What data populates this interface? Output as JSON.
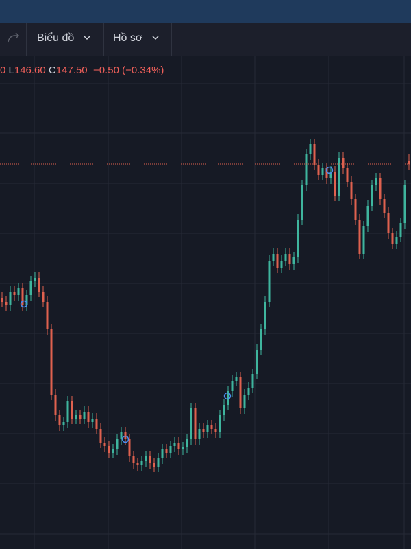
{
  "toolbar": {
    "chart_menu": "Biểu đồ",
    "profile_menu": "Hồ sơ"
  },
  "legend": {
    "fragment": "0",
    "low_label": "L",
    "low": "146.60",
    "close_label": "C",
    "close": "147.50",
    "change": "−0.50 (−0.34%)"
  },
  "chart_data": {
    "type": "candlestick",
    "up_color": "#3fb59e",
    "down_color": "#e0614f",
    "candles": [
      [
        128.0,
        128.8,
        126.6,
        127.4
      ],
      [
        127.4,
        128.2,
        126.1,
        126.9
      ],
      [
        126.9,
        129.7,
        126.1,
        128.9
      ],
      [
        128.9,
        129.7,
        127.6,
        128.4
      ],
      [
        128.4,
        130.2,
        127.6,
        129.4
      ],
      [
        129.4,
        130.2,
        126.1,
        126.9
      ],
      [
        126.9,
        129.2,
        126.1,
        128.4
      ],
      [
        128.4,
        131.2,
        127.6,
        130.4
      ],
      [
        130.4,
        131.7,
        129.6,
        130.9
      ],
      [
        130.9,
        131.7,
        128.1,
        128.9
      ],
      [
        128.9,
        129.7,
        126.6,
        127.4
      ],
      [
        127.4,
        128.2,
        122.6,
        123.4
      ],
      [
        123.4,
        124.2,
        113.1,
        113.9
      ],
      [
        113.9,
        114.7,
        110.1,
        110.9
      ],
      [
        110.9,
        111.7,
        108.6,
        109.4
      ],
      [
        109.4,
        110.7,
        108.6,
        109.9
      ],
      [
        109.9,
        113.7,
        109.1,
        112.9
      ],
      [
        112.9,
        113.7,
        109.6,
        110.4
      ],
      [
        110.4,
        111.7,
        109.6,
        110.9
      ],
      [
        110.9,
        111.7,
        109.6,
        110.4
      ],
      [
        110.4,
        112.2,
        109.6,
        111.4
      ],
      [
        111.4,
        112.2,
        109.1,
        109.9
      ],
      [
        109.9,
        111.2,
        109.1,
        110.4
      ],
      [
        110.4,
        111.2,
        108.1,
        108.9
      ],
      [
        108.9,
        109.7,
        106.1,
        106.9
      ],
      [
        106.9,
        107.7,
        105.6,
        106.4
      ],
      [
        106.4,
        107.2,
        104.6,
        105.4
      ],
      [
        105.4,
        106.7,
        104.6,
        105.9
      ],
      [
        105.9,
        108.2,
        105.1,
        107.4
      ],
      [
        107.4,
        109.2,
        106.6,
        108.4
      ],
      [
        108.4,
        109.2,
        106.6,
        107.4
      ],
      [
        107.4,
        108.2,
        104.1,
        104.9
      ],
      [
        104.9,
        105.7,
        103.1,
        103.9
      ],
      [
        103.9,
        104.7,
        102.8,
        103.6
      ],
      [
        103.6,
        105.0,
        102.8,
        104.2
      ],
      [
        104.2,
        105.7,
        103.4,
        104.9
      ],
      [
        104.9,
        105.7,
        103.1,
        103.9
      ],
      [
        103.9,
        104.7,
        102.6,
        103.4
      ],
      [
        103.4,
        105.4,
        102.6,
        104.6
      ],
      [
        104.6,
        106.7,
        103.8,
        105.9
      ],
      [
        105.9,
        106.7,
        104.6,
        105.4
      ],
      [
        105.4,
        107.2,
        104.6,
        106.4
      ],
      [
        106.4,
        107.7,
        105.6,
        106.9
      ],
      [
        106.9,
        107.7,
        105.1,
        105.9
      ],
      [
        105.9,
        107.0,
        105.1,
        106.2
      ],
      [
        106.2,
        108.2,
        105.4,
        107.4
      ],
      [
        107.4,
        112.7,
        106.6,
        111.9
      ],
      [
        111.9,
        112.7,
        106.6,
        107.4
      ],
      [
        107.4,
        109.7,
        106.6,
        108.9
      ],
      [
        108.9,
        109.7,
        107.6,
        108.4
      ],
      [
        108.4,
        110.2,
        107.6,
        109.4
      ],
      [
        109.4,
        110.2,
        108.1,
        108.9
      ],
      [
        108.9,
        109.7,
        107.6,
        108.4
      ],
      [
        108.4,
        111.7,
        107.6,
        110.9
      ],
      [
        110.9,
        113.2,
        110.1,
        112.4
      ],
      [
        112.4,
        115.2,
        111.6,
        114.4
      ],
      [
        114.4,
        116.7,
        113.6,
        115.9
      ],
      [
        115.9,
        117.2,
        115.1,
        116.4
      ],
      [
        116.4,
        117.2,
        111.1,
        111.9
      ],
      [
        111.9,
        114.7,
        111.1,
        113.9
      ],
      [
        113.9,
        115.7,
        113.1,
        114.9
      ],
      [
        114.9,
        117.7,
        114.1,
        116.9
      ],
      [
        116.9,
        121.2,
        116.1,
        120.4
      ],
      [
        120.4,
        124.2,
        119.6,
        123.4
      ],
      [
        123.4,
        128.2,
        122.6,
        127.4
      ],
      [
        127.4,
        134.2,
        126.6,
        133.4
      ],
      [
        133.4,
        135.2,
        132.6,
        134.4
      ],
      [
        134.4,
        135.2,
        131.6,
        132.4
      ],
      [
        132.4,
        134.2,
        131.6,
        133.4
      ],
      [
        133.4,
        135.2,
        132.6,
        134.4
      ],
      [
        134.4,
        135.2,
        132.1,
        132.9
      ],
      [
        132.9,
        134.7,
        132.1,
        133.9
      ],
      [
        133.9,
        140.2,
        133.1,
        139.4
      ],
      [
        139.4,
        145.2,
        138.6,
        144.4
      ],
      [
        144.4,
        149.7,
        143.6,
        148.9
      ],
      [
        148.9,
        151.2,
        148.1,
        150.4
      ],
      [
        150.4,
        151.2,
        146.6,
        147.4
      ],
      [
        147.4,
        148.2,
        145.1,
        145.9
      ],
      [
        145.9,
        147.7,
        145.1,
        146.9
      ],
      [
        146.9,
        147.7,
        144.6,
        145.4
      ],
      [
        145.4,
        147.2,
        144.6,
        146.4
      ],
      [
        146.4,
        147.2,
        142.1,
        142.9
      ],
      [
        142.9,
        149.2,
        142.1,
        148.4
      ],
      [
        148.4,
        149.2,
        146.1,
        146.9
      ],
      [
        146.9,
        147.7,
        144.1,
        144.9
      ],
      [
        144.9,
        145.7,
        141.6,
        142.4
      ],
      [
        142.4,
        143.2,
        138.6,
        139.4
      ],
      [
        139.4,
        140.2,
        133.6,
        134.4
      ],
      [
        134.4,
        139.2,
        133.6,
        138.4
      ],
      [
        138.4,
        142.2,
        137.6,
        141.4
      ],
      [
        141.4,
        145.2,
        140.6,
        144.4
      ],
      [
        144.4,
        146.2,
        143.6,
        145.4
      ],
      [
        145.4,
        146.2,
        141.6,
        142.4
      ],
      [
        142.4,
        143.2,
        139.6,
        140.4
      ],
      [
        140.4,
        141.2,
        136.6,
        137.4
      ],
      [
        137.4,
        138.2,
        135.1,
        135.9
      ],
      [
        135.9,
        137.7,
        135.1,
        136.9
      ],
      [
        136.9,
        139.7,
        136.1,
        138.9
      ],
      [
        138.9,
        145.2,
        138.1,
        144.4
      ],
      [
        148.0,
        148.9,
        146.6,
        147.5
      ]
    ]
  }
}
